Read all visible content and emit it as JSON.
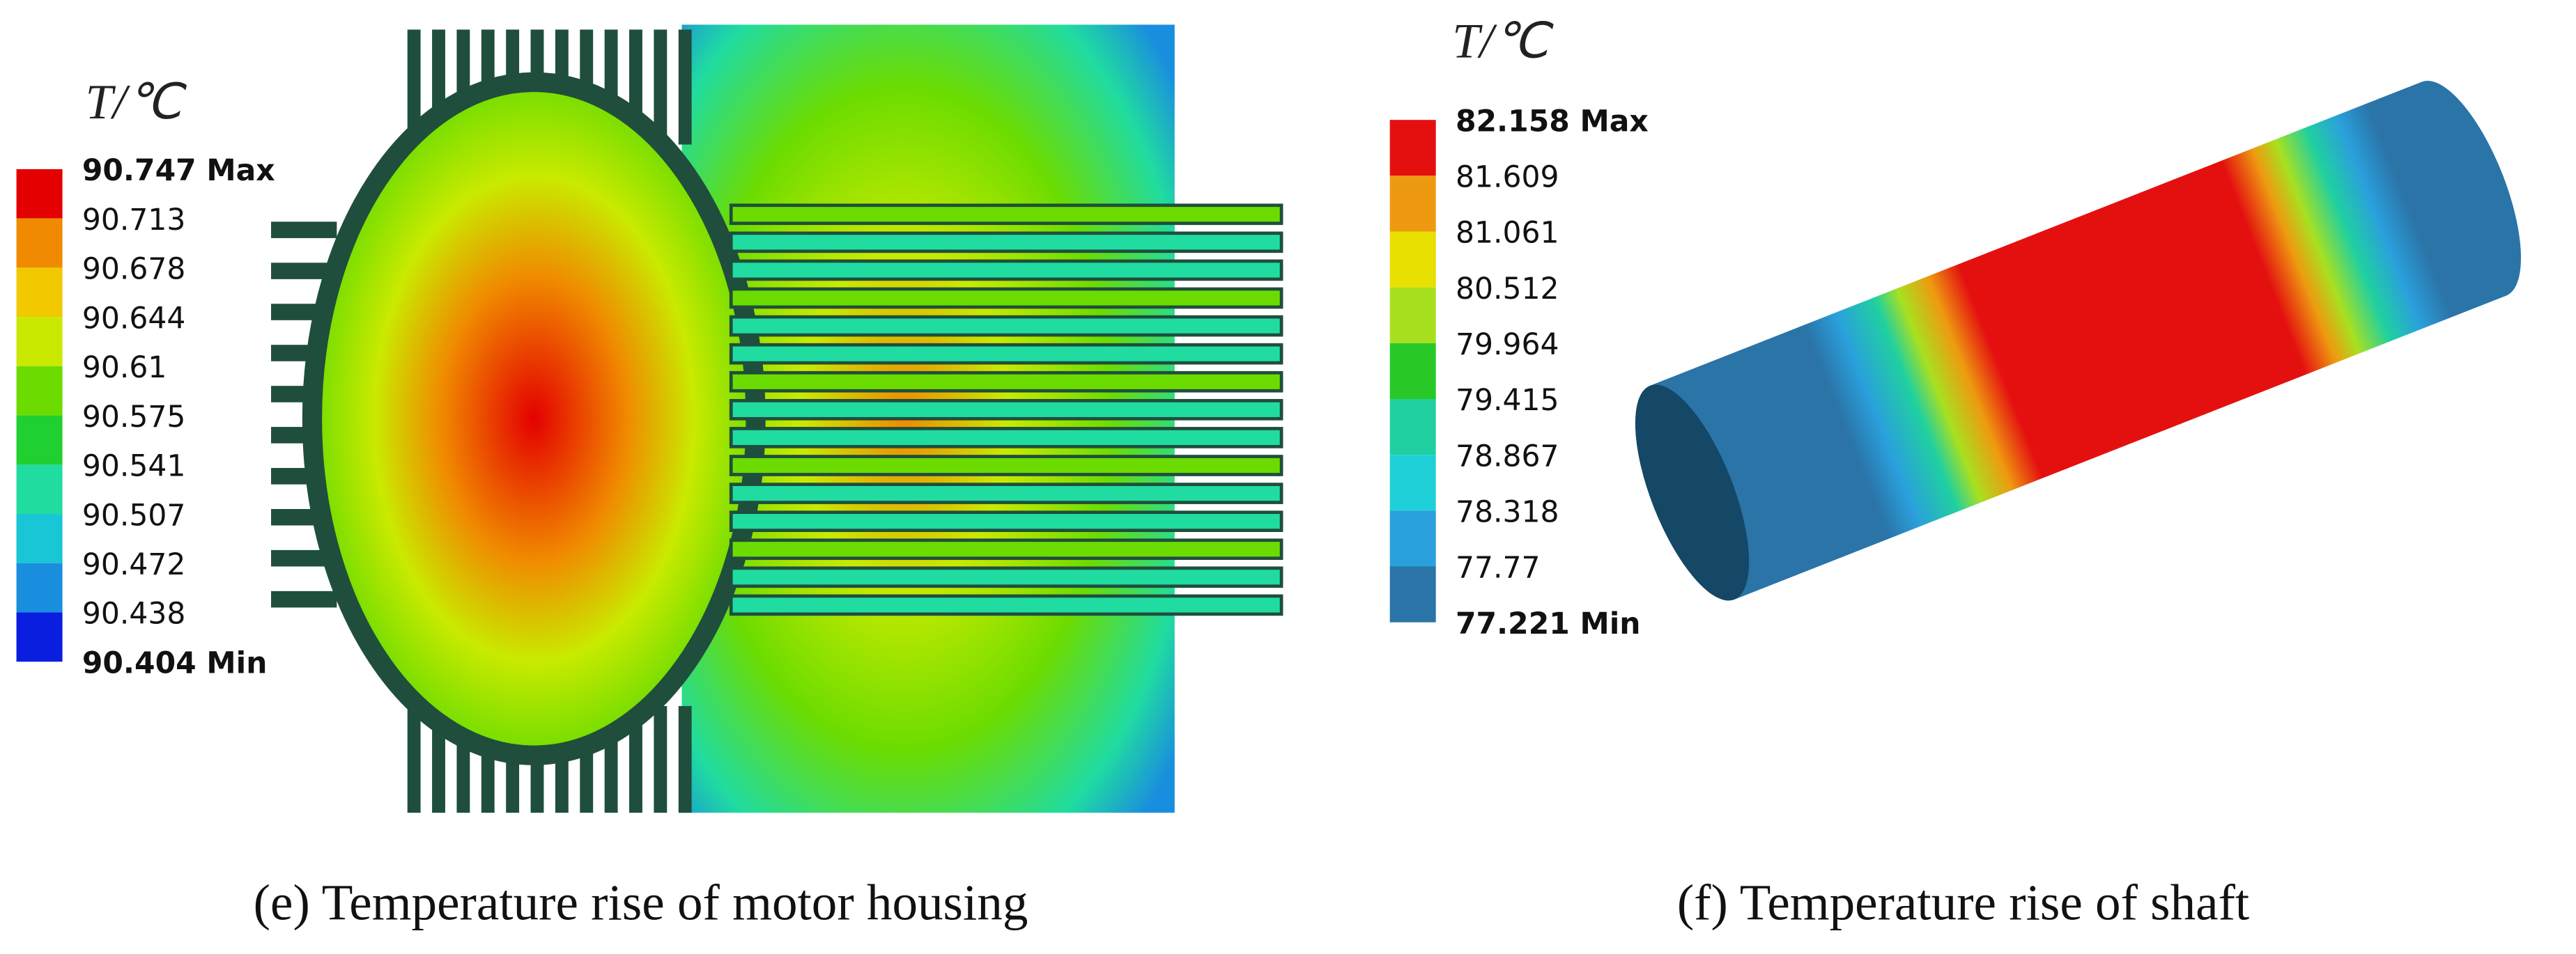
{
  "panels": [
    {
      "legend": {
        "title": "T/℃",
        "labels": [
          "90.747 Max",
          "90.713",
          "90.678",
          "90.644",
          "90.61",
          "90.575",
          "90.541",
          "90.507",
          "90.472",
          "90.438",
          "90.404 Min"
        ],
        "colors": [
          "#e40000",
          "#f08a00",
          "#f2c800",
          "#c9ea00",
          "#6cdc00",
          "#20cf30",
          "#20dca0",
          "#18c6d6",
          "#1a8ede",
          "#0a1ee0"
        ]
      },
      "caption": "(e) Temperature rise of motor housing"
    },
    {
      "legend": {
        "title": "T/℃",
        "labels": [
          "82.158 Max",
          "81.609",
          "81.061",
          "80.512",
          "79.964",
          "79.415",
          "78.867",
          "78.318",
          "77.77",
          "77.221 Min"
        ],
        "colors": [
          "#e41010",
          "#ee9a10",
          "#e8e000",
          "#a8e020",
          "#28c828",
          "#20d0a0",
          "#20d0d8",
          "#2aa0dc",
          "#2a74a8"
        ]
      },
      "caption": "(f) Temperature rise of shaft"
    }
  ]
}
